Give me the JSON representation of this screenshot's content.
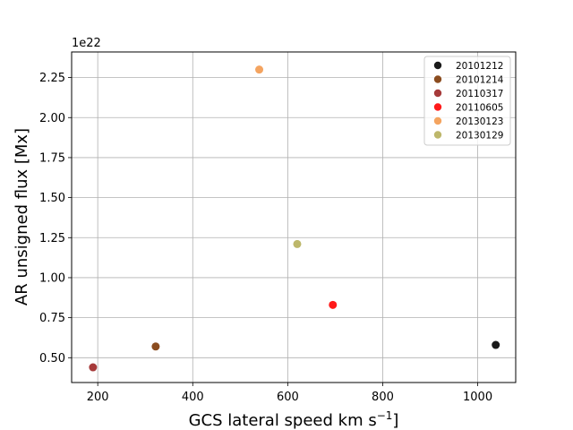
{
  "chart_data": {
    "type": "scatter",
    "title": "",
    "xlabel": "GCS lateral speed km s",
    "xlabel_superscript": "−1",
    "xlabel_suffix": "]",
    "ylabel": "AR unsigned flux [Mx]",
    "y_offset_text": "1e22",
    "xlim": [
      145,
      1080
    ],
    "ylim": [
      0.345,
      2.41
    ],
    "y_scale_multiplier": 1e+22,
    "x_ticks": [
      200,
      400,
      600,
      800,
      1000
    ],
    "x_tick_labels": [
      "200",
      "400",
      "600",
      "800",
      "1000"
    ],
    "y_ticks": [
      0.5,
      0.75,
      1.0,
      1.25,
      1.5,
      1.75,
      2.0,
      2.25
    ],
    "y_tick_labels": [
      "0.50",
      "0.75",
      "1.00",
      "1.25",
      "1.50",
      "1.75",
      "2.00",
      "2.25"
    ],
    "grid": true,
    "legend_position": "top-right",
    "series": [
      {
        "name": "20101212",
        "color": "#1a1a1a",
        "points": [
          {
            "x": 1038,
            "y": 0.58
          }
        ]
      },
      {
        "name": "20101214",
        "color": "#8b4c1f",
        "points": [
          {
            "x": 322,
            "y": 0.57
          }
        ]
      },
      {
        "name": "20110317",
        "color": "#a63a3a",
        "points": [
          {
            "x": 190,
            "y": 0.44
          }
        ]
      },
      {
        "name": "20110605",
        "color": "#ff1a1a",
        "points": [
          {
            "x": 695,
            "y": 0.83
          }
        ]
      },
      {
        "name": "20130123",
        "color": "#f4a460",
        "points": [
          {
            "x": 540,
            "y": 2.3
          }
        ]
      },
      {
        "name": "20130129",
        "color": "#bdb76b",
        "points": [
          {
            "x": 620,
            "y": 1.21
          }
        ]
      }
    ]
  }
}
